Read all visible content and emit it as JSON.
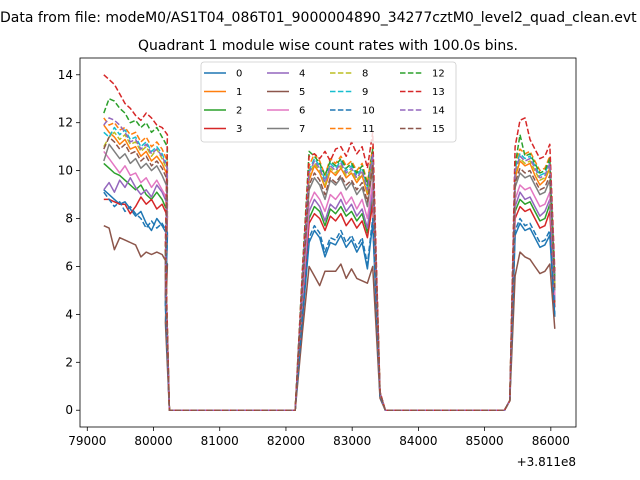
{
  "chart_data": {
    "type": "line",
    "suptitle": "Data from file: modeM0/AS1T04_086T01_9000004890_34277cztM0_level2_quad_clean.evt",
    "title": "Quadrant 1 module wise count rates with 100.0s bins.",
    "xlabel": "",
    "ylabel": "",
    "offset_text": "+3.811e8",
    "xlim": [
      78890,
      86380
    ],
    "ylim": [
      -0.7,
      14.7
    ],
    "x_ticks": [
      79000,
      80000,
      81000,
      82000,
      83000,
      84000,
      85000,
      86000
    ],
    "x_tick_labels": [
      "79000",
      "80000",
      "81000",
      "82000",
      "83000",
      "84000",
      "85000",
      "86000"
    ],
    "y_ticks": [
      0,
      2,
      4,
      6,
      8,
      10,
      12,
      14
    ],
    "y_tick_labels": [
      "0",
      "2",
      "4",
      "6",
      "8",
      "10",
      "12",
      "14"
    ],
    "grid": false,
    "legend_position": "top-center",
    "legend_columns": 4,
    "series": [
      {
        "name": "0",
        "color": "#1f77b4",
        "dash": "solid",
        "b1": [
          9.2,
          9.0,
          8.8,
          8.6,
          8.7,
          8.4,
          8.1,
          8.3,
          7.8,
          7.5,
          8.0,
          7.7,
          7.3
        ],
        "b2": [
          7.0,
          7.5,
          7.2,
          6.4,
          7.0,
          6.9,
          7.3,
          6.8,
          7.1,
          6.6,
          7.0,
          5.9,
          7.8
        ],
        "b3": [
          7.3,
          7.8,
          7.5,
          7.6,
          7.2,
          6.8,
          6.9,
          7.3,
          3.9
        ]
      },
      {
        "name": "1",
        "color": "#ff7f0e",
        "dash": "solid",
        "b1": [
          11.9,
          11.6,
          11.4,
          11.1,
          11.3,
          10.9,
          11.0,
          10.6,
          10.8,
          10.4,
          10.6,
          10.3,
          9.8
        ],
        "b2": [
          9.6,
          10.2,
          9.9,
          9.3,
          10.0,
          9.8,
          10.1,
          9.7,
          9.9,
          9.5,
          9.8,
          9.0,
          10.5
        ],
        "b3": [
          9.7,
          10.4,
          10.2,
          10.3,
          9.8,
          9.4,
          9.6,
          10.1,
          5.2
        ]
      },
      {
        "name": "2",
        "color": "#2ca02c",
        "dash": "solid",
        "b1": [
          10.3,
          10.1,
          9.9,
          9.8,
          9.6,
          9.4,
          9.2,
          9.4,
          9.0,
          8.8,
          9.1,
          8.8,
          8.3
        ],
        "b2": [
          8.0,
          8.5,
          8.3,
          7.7,
          8.4,
          8.2,
          8.5,
          8.1,
          8.3,
          7.9,
          8.2,
          7.4,
          8.9
        ],
        "b3": [
          8.3,
          8.8,
          8.6,
          8.7,
          8.3,
          7.9,
          8.0,
          8.6,
          4.5
        ]
      },
      {
        "name": "3",
        "color": "#d62728",
        "dash": "solid",
        "b1": [
          8.8,
          8.8,
          8.7,
          8.6,
          8.6,
          8.2,
          8.5,
          8.9,
          8.6,
          8.8,
          8.4,
          8.6,
          8.1
        ],
        "b2": [
          7.8,
          8.2,
          8.0,
          7.5,
          8.1,
          7.9,
          8.2,
          7.7,
          8.0,
          7.6,
          7.9,
          7.2,
          8.6
        ],
        "b3": [
          8.0,
          8.5,
          8.3,
          8.4,
          8.0,
          7.6,
          7.7,
          8.3,
          4.3
        ]
      },
      {
        "name": "4",
        "color": "#9467bd",
        "dash": "solid",
        "b1": [
          9.2,
          9.5,
          9.1,
          9.6,
          9.3,
          9.7,
          9.3,
          9.0,
          9.2,
          8.9,
          9.4,
          9.1,
          8.6
        ],
        "b2": [
          8.3,
          8.8,
          8.5,
          7.9,
          8.6,
          8.4,
          8.8,
          8.3,
          8.6,
          8.1,
          8.4,
          7.6,
          9.2
        ],
        "b3": [
          8.5,
          9.1,
          8.8,
          8.9,
          8.5,
          8.1,
          8.3,
          8.8,
          4.6
        ]
      },
      {
        "name": "5",
        "color": "#8c564b",
        "dash": "solid",
        "b1": [
          7.7,
          7.6,
          6.7,
          7.2,
          7.1,
          7.0,
          6.9,
          6.4,
          6.6,
          6.5,
          6.6,
          6.5,
          6.1
        ],
        "b2": [
          6.0,
          5.6,
          5.2,
          5.8,
          5.8,
          5.8,
          6.1,
          5.5,
          5.9,
          5.5,
          5.4,
          5.3,
          6.0
        ],
        "b3": [
          5.6,
          6.6,
          6.4,
          6.3,
          6.0,
          5.7,
          5.8,
          6.1,
          3.4
        ]
      },
      {
        "name": "6",
        "color": "#e377c2",
        "dash": "solid",
        "b1": [
          10.8,
          10.5,
          10.2,
          9.9,
          10.2,
          9.8,
          9.9,
          9.5,
          9.7,
          9.3,
          9.6,
          9.2,
          8.8
        ],
        "b2": [
          8.6,
          9.1,
          8.8,
          8.3,
          9.0,
          8.8,
          9.1,
          8.6,
          8.9,
          8.4,
          8.8,
          8.0,
          9.5
        ],
        "b3": [
          8.8,
          9.4,
          9.2,
          9.3,
          8.9,
          8.5,
          8.6,
          9.1,
          4.8
        ]
      },
      {
        "name": "7",
        "color": "#7f7f7f",
        "dash": "solid",
        "b1": [
          10.4,
          11.1,
          10.8,
          10.5,
          10.7,
          10.3,
          10.5,
          10.1,
          10.3,
          10.0,
          10.2,
          9.8,
          9.3
        ],
        "b2": [
          9.2,
          9.7,
          9.4,
          8.8,
          9.6,
          9.4,
          9.7,
          9.2,
          9.5,
          9.0,
          9.3,
          8.5,
          10.1
        ],
        "b3": [
          9.3,
          9.9,
          9.7,
          9.8,
          9.4,
          9.0,
          9.1,
          9.6,
          5.0
        ]
      },
      {
        "name": "8",
        "color": "#bcbd22",
        "dash": "dashed",
        "b1": [
          11.0,
          11.4,
          11.6,
          11.3,
          11.5,
          11.1,
          11.2,
          10.8,
          11.0,
          10.6,
          10.9,
          10.5,
          10.0
        ],
        "b2": [
          9.8,
          10.3,
          10.0,
          9.4,
          10.1,
          9.9,
          10.2,
          9.8,
          10.0,
          9.6,
          9.9,
          9.1,
          10.6
        ],
        "b3": [
          9.9,
          10.5,
          10.3,
          10.4,
          10.0,
          9.6,
          9.7,
          10.2,
          5.3
        ]
      },
      {
        "name": "9",
        "color": "#17becf",
        "dash": "dashed",
        "b1": [
          11.6,
          11.4,
          11.8,
          11.5,
          11.7,
          11.3,
          11.4,
          11.0,
          11.2,
          10.8,
          11.0,
          10.7,
          10.2
        ],
        "b2": [
          10.0,
          10.5,
          10.2,
          9.6,
          10.3,
          10.1,
          10.4,
          10.0,
          10.2,
          9.8,
          10.1,
          9.3,
          10.8
        ],
        "b3": [
          10.1,
          10.7,
          10.5,
          10.6,
          10.2,
          9.8,
          9.9,
          10.4,
          5.4
        ]
      },
      {
        "name": "10",
        "color": "#1f77b4",
        "dash": "dashed",
        "b1": [
          9.1,
          8.8,
          8.5,
          8.7,
          8.3,
          8.5,
          8.2,
          8.0,
          7.6,
          7.9,
          7.6,
          7.8,
          7.4
        ],
        "b2": [
          7.2,
          7.7,
          7.4,
          6.6,
          7.2,
          7.1,
          7.5,
          7.0,
          7.3,
          6.8,
          7.2,
          6.1,
          8.0
        ],
        "b3": [
          7.5,
          8.0,
          7.7,
          7.8,
          7.4,
          7.0,
          7.1,
          7.5,
          4.0
        ]
      },
      {
        "name": "11",
        "color": "#ff7f0e",
        "dash": "dashed",
        "b1": [
          12.2,
          11.9,
          12.0,
          11.7,
          11.8,
          11.5,
          11.6,
          11.2,
          11.4,
          11.0,
          11.2,
          10.9,
          10.4
        ],
        "b2": [
          10.2,
          10.7,
          10.4,
          9.8,
          10.5,
          10.3,
          10.6,
          10.2,
          10.4,
          10.0,
          10.3,
          9.5,
          11.0
        ],
        "b3": [
          10.3,
          10.9,
          10.7,
          10.8,
          10.4,
          10.0,
          10.1,
          10.6,
          5.5
        ]
      },
      {
        "name": "12",
        "color": "#2ca02c",
        "dash": "dashed",
        "b1": [
          12.4,
          13.0,
          12.9,
          12.6,
          12.4,
          12.0,
          12.1,
          11.8,
          12.0,
          11.6,
          11.8,
          11.4,
          11.0
        ],
        "b2": [
          10.8,
          10.6,
          10.3,
          9.8,
          10.4,
          10.2,
          10.5,
          10.1,
          10.3,
          9.9,
          10.2,
          9.4,
          10.9
        ],
        "b3": [
          10.2,
          11.5,
          10.6,
          10.7,
          10.3,
          9.9,
          10.0,
          10.5,
          5.5
        ]
      },
      {
        "name": "13",
        "color": "#d62728",
        "dash": "dashed",
        "b1": [
          14.0,
          13.8,
          13.6,
          13.2,
          12.8,
          12.6,
          12.3,
          12.1,
          12.4,
          12.2,
          11.9,
          11.8,
          11.5
        ],
        "b2": [
          10.6,
          10.7,
          10.5,
          10.8,
          10.4,
          10.9,
          11.0,
          10.6,
          11.2,
          10.7,
          11.0,
          10.1,
          11.6
        ],
        "b3": [
          11.0,
          12.1,
          12.2,
          11.3,
          10.9,
          10.5,
          10.6,
          11.1,
          5.8
        ]
      },
      {
        "name": "14",
        "color": "#9467bd",
        "dash": "dashed",
        "b1": [
          11.9,
          12.2,
          12.1,
          11.9,
          11.6,
          11.2,
          11.3,
          10.9,
          11.1,
          10.7,
          10.9,
          10.6,
          10.1
        ],
        "b2": [
          9.9,
          10.4,
          10.1,
          9.5,
          10.2,
          10.0,
          10.3,
          9.9,
          10.1,
          9.7,
          10.0,
          9.2,
          10.7
        ],
        "b3": [
          10.0,
          10.6,
          10.4,
          10.5,
          10.1,
          9.7,
          9.8,
          10.3,
          5.4
        ]
      },
      {
        "name": "15",
        "color": "#8c564b",
        "dash": "dashed",
        "b1": [
          10.9,
          11.4,
          11.2,
          10.9,
          11.1,
          10.7,
          10.8,
          10.4,
          10.6,
          10.2,
          10.4,
          10.1,
          9.6
        ],
        "b2": [
          9.4,
          9.9,
          9.6,
          9.0,
          9.7,
          9.5,
          9.8,
          9.4,
          9.6,
          9.2,
          9.5,
          8.7,
          10.2
        ],
        "b3": [
          9.5,
          10.1,
          9.9,
          10.0,
          9.6,
          9.2,
          9.3,
          9.8,
          5.1
        ]
      }
    ]
  }
}
